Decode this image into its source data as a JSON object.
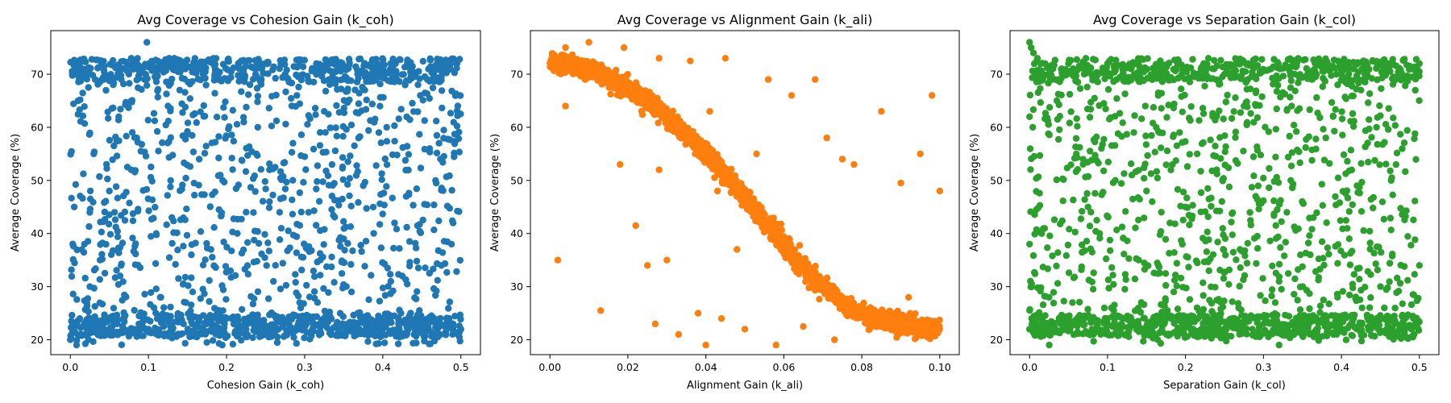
{
  "figure": {
    "background": "#ffffff"
  },
  "chart_data": [
    {
      "type": "scatter",
      "title": "Avg Coverage vs Cohesion Gain (k_coh)",
      "xlabel": "Cohesion Gain (k_coh)",
      "ylabel": "Average Coverage (%)",
      "color": "#1f77b4",
      "xlim": [
        -0.025,
        0.525
      ],
      "ylim": [
        17.2,
        78.2
      ],
      "xticks": [
        0.0,
        0.1,
        0.2,
        0.3,
        0.4,
        0.5
      ],
      "xtick_labels": [
        "0.0",
        "0.1",
        "0.2",
        "0.3",
        "0.4",
        "0.5"
      ],
      "yticks": [
        20,
        30,
        40,
        50,
        60,
        70
      ],
      "ytick_labels": [
        "20",
        "30",
        "40",
        "50",
        "60",
        "70"
      ],
      "grid": false,
      "points": {
        "x": [
          0.0,
          0.004,
          0.008,
          0.012,
          0.02,
          0.028,
          0.035,
          0.045,
          0.06,
          0.068,
          0.082,
          0.09,
          0.1,
          0.12,
          0.145,
          0.16,
          0.175,
          0.19,
          0.2,
          0.21,
          0.225,
          0.235,
          0.25,
          0.265,
          0.28,
          0.3,
          0.31,
          0.33,
          0.355,
          0.37,
          0.38,
          0.4,
          0.42,
          0.44,
          0.455,
          0.47,
          0.485,
          0.49,
          0.5,
          0.003,
          0.015,
          0.04,
          0.075,
          0.105,
          0.135,
          0.17,
          0.215,
          0.245,
          0.275,
          0.315,
          0.345,
          0.385,
          0.41,
          0.435,
          0.465,
          0.495,
          0.01,
          0.055,
          0.095,
          0.14,
          0.185,
          0.23,
          0.29,
          0.34,
          0.39,
          0.445,
          0.48,
          0.025,
          0.065,
          0.115,
          0.155,
          0.205,
          0.26,
          0.32,
          0.36,
          0.425,
          0.475,
          0.005,
          0.05,
          0.13,
          0.195,
          0.255,
          0.305,
          0.375,
          0.43,
          0.49,
          0.03,
          0.085,
          0.165,
          0.24,
          0.285,
          0.335,
          0.395,
          0.46,
          0.018,
          0.11,
          0.18,
          0.27,
          0.35,
          0.415,
          0.488,
          0.062,
          0.125,
          0.222,
          0.325,
          0.405,
          0.078,
          0.148,
          0.268,
          0.368,
          0.448,
          0.038,
          0.192,
          0.295,
          0.472,
          0.098
        ],
        "y": [
          20,
          22,
          19,
          24,
          21,
          23,
          22,
          21,
          23,
          24,
          22,
          23,
          22,
          24,
          23,
          21,
          23,
          22,
          24,
          23,
          22,
          23,
          21,
          24,
          22,
          23,
          22,
          24,
          23,
          22,
          23,
          22,
          24,
          21,
          23,
          22,
          24,
          23,
          22,
          70,
          71,
          72,
          70,
          72,
          71,
          70,
          72,
          71,
          70,
          72,
          71,
          70,
          72,
          71,
          70,
          72,
          65,
          68,
          69,
          67,
          70,
          68,
          66,
          69,
          70,
          68,
          71,
          30,
          34,
          28,
          36,
          33,
          31,
          35,
          29,
          32,
          34,
          45,
          48,
          43,
          50,
          46,
          44,
          49,
          47,
          42,
          55,
          58,
          54,
          60,
          57,
          53,
          59,
          56,
          38,
          40,
          37,
          41,
          39,
          42,
          38,
          62,
          64,
          61,
          63,
          60,
          52,
          27,
          44,
          25,
          66,
          35,
          51,
          26,
          57,
          76
        ],
        "note": "approximate sample of ~2000 points, uniform x in [0,0.5], coverage concentrated near 21-24 and 69-73"
      }
    },
    {
      "type": "scatter",
      "title": "Avg Coverage vs Alignment Gain (k_ali)",
      "xlabel": "Alignment Gain (k_ali)",
      "ylabel": "Average Coverage (%)",
      "color": "#ff7f0e",
      "xlim": [
        -0.005,
        0.105
      ],
      "ylim": [
        17.2,
        78.2
      ],
      "xticks": [
        0.0,
        0.02,
        0.04,
        0.06,
        0.08,
        0.1
      ],
      "xtick_labels": [
        "0.00",
        "0.02",
        "0.04",
        "0.06",
        "0.08",
        "0.10"
      ],
      "yticks": [
        20,
        30,
        40,
        50,
        60,
        70
      ],
      "ytick_labels": [
        "20",
        "30",
        "40",
        "50",
        "60",
        "70"
      ],
      "grid": false,
      "trend": {
        "x": [
          0.0,
          0.01,
          0.02,
          0.03,
          0.04,
          0.045,
          0.05,
          0.055,
          0.06,
          0.065,
          0.07,
          0.075,
          0.08,
          0.09,
          0.1
        ],
        "y": [
          72.5,
          71.0,
          67.5,
          62.0,
          55.0,
          51.0,
          47.0,
          42.0,
          38.0,
          33.5,
          30.0,
          27.0,
          25.0,
          23.0,
          21.8
        ]
      },
      "outliers": {
        "x": [
          0.002,
          0.004,
          0.01,
          0.013,
          0.018,
          0.022,
          0.025,
          0.027,
          0.028,
          0.03,
          0.033,
          0.036,
          0.038,
          0.04,
          0.041,
          0.043,
          0.045,
          0.048,
          0.05,
          0.053,
          0.056,
          0.058,
          0.062,
          0.065,
          0.068,
          0.071,
          0.073,
          0.075,
          0.078,
          0.082,
          0.085,
          0.09,
          0.092,
          0.095,
          0.098,
          0.1,
          0.004,
          0.009,
          0.019,
          0.028,
          0.044
        ],
        "y": [
          35,
          64,
          76,
          25.5,
          53,
          41.5,
          34,
          23,
          73,
          35,
          21,
          72.5,
          25,
          19,
          63,
          48,
          73,
          37,
          22,
          55,
          69,
          19,
          66,
          22.5,
          69,
          58,
          20,
          54,
          53,
          22,
          63,
          49.5,
          28,
          55,
          66,
          48,
          75,
          69,
          75,
          52,
          24
        ],
        "note": "scattered outliers away from main curve"
      }
    },
    {
      "type": "scatter",
      "title": "Avg Coverage vs Separation Gain (k_col)",
      "xlabel": "Separation Gain (k_col)",
      "ylabel": "Average Coverage (%)",
      "color": "#2ca02c",
      "xlim": [
        -0.025,
        0.525
      ],
      "ylim": [
        17.2,
        78.2
      ],
      "xticks": [
        0.0,
        0.1,
        0.2,
        0.3,
        0.4,
        0.5
      ],
      "xtick_labels": [
        "0.0",
        "0.1",
        "0.2",
        "0.3",
        "0.4",
        "0.5"
      ],
      "yticks": [
        20,
        30,
        40,
        50,
        60,
        70
      ],
      "ytick_labels": [
        "20",
        "30",
        "40",
        "50",
        "60",
        "70"
      ],
      "grid": false,
      "points": {
        "x": [
          0.0,
          0.002,
          0.005,
          0.01,
          0.02,
          0.03,
          0.05,
          0.07,
          0.1,
          0.13,
          0.16,
          0.19,
          0.22,
          0.25,
          0.28,
          0.31,
          0.34,
          0.37,
          0.4,
          0.43,
          0.46,
          0.49,
          0.5,
          0.0,
          0.003,
          0.008,
          0.015,
          0.04,
          0.08,
          0.12,
          0.17,
          0.21,
          0.26,
          0.3,
          0.35,
          0.39,
          0.44,
          0.48,
          0.0,
          0.004,
          0.06,
          0.11,
          0.15,
          0.2,
          0.24,
          0.29,
          0.33,
          0.38,
          0.42,
          0.47,
          0.0,
          0.09,
          0.14,
          0.18,
          0.23,
          0.27,
          0.32,
          0.36,
          0.41,
          0.45,
          0.5,
          0.025,
          0.055,
          0.105,
          0.185,
          0.235,
          0.315,
          0.395,
          0.455,
          0.495,
          0.035,
          0.165,
          0.275,
          0.425,
          0.075,
          0.215,
          0.335,
          0.445,
          0.0,
          0.32
        ],
        "y": [
          76,
          75,
          74,
          73,
          72,
          71,
          72,
          70,
          72,
          71,
          70,
          72,
          71,
          70,
          72,
          71,
          70,
          72,
          71,
          70,
          72,
          71,
          72,
          22,
          23,
          22,
          21,
          23,
          22,
          24,
          23,
          22,
          24,
          23,
          22,
          21,
          23,
          22,
          62,
          60,
          55,
          50,
          48,
          45,
          52,
          47,
          44,
          58,
          49,
          53,
          38,
          40,
          35,
          42,
          33,
          37,
          31,
          36,
          39,
          30,
          34,
          28,
          27,
          26,
          29,
          25,
          27,
          28,
          26,
          24,
          65,
          66,
          64,
          67,
          45,
          55,
          50,
          60,
          22,
          19
        ],
        "note": "approximate sample, roughly uniform coverage with dense bands near 22-24 and 69-73"
      }
    }
  ]
}
